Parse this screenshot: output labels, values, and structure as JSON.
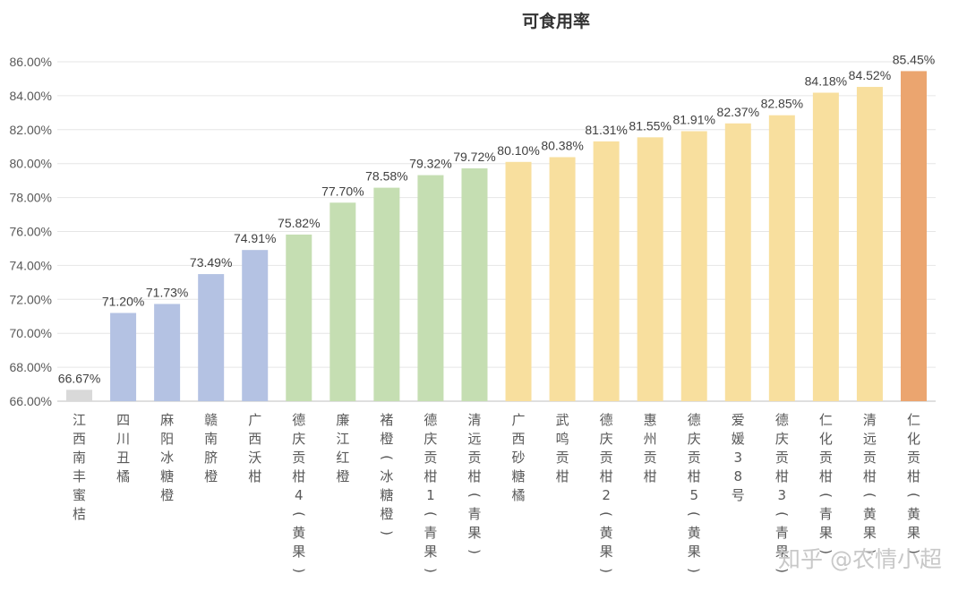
{
  "watermark": "知乎 @农情小超",
  "chart_data": {
    "type": "bar",
    "title": "可食用率",
    "xlabel": "",
    "ylabel": "",
    "ylim": [
      66,
      86
    ],
    "y_ticks": [
      "66.00%",
      "68.00%",
      "70.00%",
      "72.00%",
      "74.00%",
      "76.00%",
      "78.00%",
      "80.00%",
      "82.00%",
      "84.00%",
      "86.00%"
    ],
    "grid": "horizontal",
    "legend": "none",
    "categories": [
      "江西南丰蜜桔",
      "四川丑橘",
      "麻阳冰糖橙",
      "赣南脐橙",
      "广西沃柑",
      "德庆贡柑4（黄果）",
      "廉江红橙",
      "褚橙（冰糖橙）",
      "德庆贡柑1（青果）",
      "清远贡柑（青果）",
      "广西砂糖橘",
      "武鸣贡柑",
      "德庆贡柑2（黄果）",
      "惠州贡柑",
      "德庆贡柑5（黄果）",
      "爱媛38号",
      "德庆贡柑3（青果）",
      "仁化贡柑（青果）",
      "清远贡柑（黄果）",
      "仁化贡柑（黄果）"
    ],
    "values": [
      66.67,
      71.2,
      71.73,
      73.49,
      74.91,
      75.82,
      77.7,
      78.58,
      79.32,
      79.72,
      80.1,
      80.38,
      81.31,
      81.55,
      81.91,
      82.37,
      82.85,
      84.18,
      84.52,
      85.45
    ],
    "data_labels": [
      "66.67%",
      "71.20%",
      "71.73%",
      "73.49%",
      "74.91%",
      "75.82%",
      "77.70%",
      "78.58%",
      "79.32%",
      "79.72%",
      "80.10%",
      "80.38%",
      "81.31%",
      "81.55%",
      "81.91%",
      "82.37%",
      "82.85%",
      "84.18%",
      "84.52%",
      "85.45%"
    ],
    "bar_colors": [
      "#d9d9d9",
      "#b4c2e3",
      "#b4c2e3",
      "#b4c2e3",
      "#b4c2e3",
      "#c5deb2",
      "#c5deb2",
      "#c5deb2",
      "#c5deb2",
      "#c5deb2",
      "#f8df9e",
      "#f8df9e",
      "#f8df9e",
      "#f8df9e",
      "#f8df9e",
      "#f8df9e",
      "#f8df9e",
      "#f8df9e",
      "#f8df9e",
      "#eba56f"
    ]
  }
}
